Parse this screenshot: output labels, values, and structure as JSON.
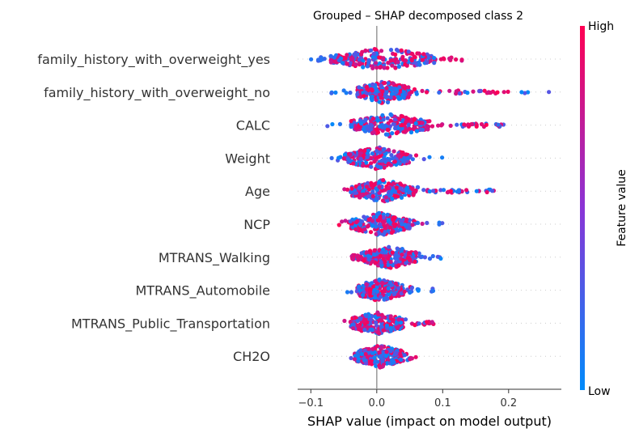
{
  "chart_data": {
    "type": "scatter",
    "subtype": "shap-beeswarm",
    "title": "Grouped – SHAP decomposed class 2",
    "xlabel": "SHAP value (impact on model output)",
    "xlim": [
      -0.12,
      0.28
    ],
    "xticks": [
      -0.1,
      0.0,
      0.1,
      0.2
    ],
    "xtick_labels": [
      "−0.1",
      "0.0",
      "0.1",
      "0.2"
    ],
    "colorbar": {
      "label": "Feature value",
      "high": "High",
      "low": "Low",
      "color_low": "#008bfb",
      "color_high": "#ff0052"
    },
    "zero_line_color": "#999999",
    "features": [
      {
        "name": "family_history_with_overweight_yes",
        "min": -0.1,
        "max": 0.13,
        "low_range": [
          -0.1,
          0.0
        ],
        "high_range": [
          -0.08,
          0.13
        ],
        "dense": [
          -0.07,
          0.09
        ]
      },
      {
        "name": "family_history_with_overweight_no",
        "min": -0.08,
        "max": 0.27,
        "low_range": [
          -0.08,
          0.27
        ],
        "high_range": [
          0.0,
          0.2
        ],
        "dense": [
          -0.03,
          0.05
        ]
      },
      {
        "name": "CALC",
        "min": -0.08,
        "max": 0.2,
        "low_range": [
          -0.08,
          0.2
        ],
        "high_range": [
          -0.03,
          0.2
        ],
        "dense": [
          -0.04,
          0.08
        ]
      },
      {
        "name": "Weight",
        "min": -0.07,
        "max": 0.1,
        "low_range": [
          -0.07,
          0.1
        ],
        "high_range": [
          -0.05,
          0.06
        ],
        "dense": [
          -0.05,
          0.05
        ]
      },
      {
        "name": "Age",
        "min": -0.05,
        "max": 0.19,
        "low_range": [
          -0.03,
          0.19
        ],
        "high_range": [
          -0.05,
          0.19
        ],
        "dense": [
          -0.04,
          0.06
        ]
      },
      {
        "name": "NCP",
        "min": -0.06,
        "max": 0.1,
        "low_range": [
          -0.04,
          0.1
        ],
        "high_range": [
          -0.06,
          0.07
        ],
        "dense": [
          -0.04,
          0.05
        ]
      },
      {
        "name": "MTRANS_Walking",
        "min": -0.04,
        "max": 0.11,
        "low_range": [
          -0.04,
          0.11
        ],
        "high_range": [
          -0.04,
          0.01
        ],
        "dense": [
          -0.02,
          0.06
        ]
      },
      {
        "name": "MTRANS_Automobile",
        "min": -0.05,
        "max": 0.09,
        "low_range": [
          -0.05,
          0.09
        ],
        "high_range": [
          -0.02,
          0.06
        ],
        "dense": [
          -0.03,
          0.04
        ]
      },
      {
        "name": "MTRANS_Public_Transportation",
        "min": -0.05,
        "max": 0.09,
        "low_range": [
          -0.02,
          0.09
        ],
        "high_range": [
          -0.05,
          0.09
        ],
        "dense": [
          -0.04,
          0.04
        ]
      },
      {
        "name": "CH2O",
        "min": -0.04,
        "max": 0.06,
        "low_range": [
          -0.04,
          0.05
        ],
        "high_range": [
          -0.04,
          0.06
        ],
        "dense": [
          -0.03,
          0.04
        ]
      }
    ]
  }
}
